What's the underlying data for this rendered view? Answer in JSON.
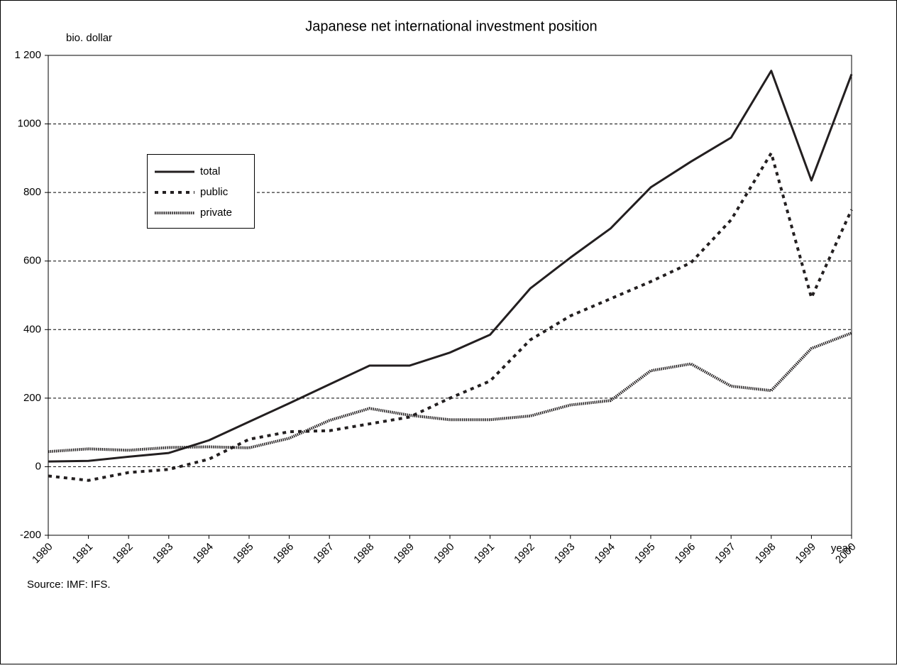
{
  "chart_data": {
    "type": "line",
    "title": "Japanese net international investment position",
    "y_axis_label": "bio. dollar",
    "x_axis_label": "year",
    "source": "Source: IMF: IFS.",
    "categories": [
      "1980",
      "1981",
      "1982",
      "1983",
      "1984",
      "1985",
      "1986",
      "1987",
      "1988",
      "1989",
      "1990",
      "1991",
      "1992",
      "1993",
      "1994",
      "1995",
      "1996",
      "1997",
      "1998",
      "1999",
      "2000"
    ],
    "series": [
      {
        "name": "total",
        "color": "#231f20",
        "values": [
          15,
          17,
          29,
          40,
          77,
          131,
          185,
          240,
          295,
          295,
          333,
          385,
          520,
          610,
          695,
          815,
          890,
          960,
          1155,
          835,
          1145
        ]
      },
      {
        "name": "public",
        "color": "#231f20",
        "values": [
          -27,
          -40,
          -17,
          -8,
          22,
          80,
          102,
          105,
          125,
          145,
          200,
          250,
          370,
          440,
          490,
          540,
          595,
          720,
          915,
          493,
          750
        ]
      },
      {
        "name": "private",
        "color": "#231f20",
        "values": [
          44,
          52,
          48,
          56,
          58,
          55,
          83,
          135,
          170,
          150,
          137,
          137,
          148,
          180,
          193,
          280,
          300,
          235,
          222,
          345,
          390
        ]
      }
    ],
    "ylim": [
      -200,
      1200
    ],
    "yticks": [
      -200,
      0,
      200,
      400,
      600,
      800,
      {
        "value": 1000,
        "label": "1000"
      },
      {
        "value": 1200,
        "label": "1 200"
      }
    ],
    "grid": true
  }
}
